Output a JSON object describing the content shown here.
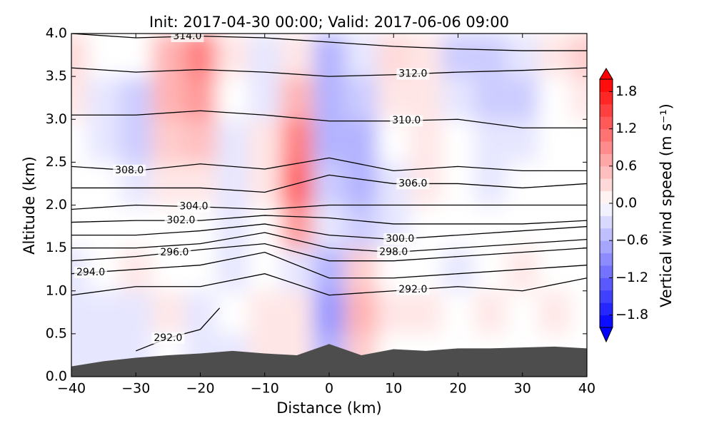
{
  "chart_data": {
    "type": "contour",
    "title": "Init: 2017-04-30 00:00; Valid: 2017-06-06 09:00",
    "xlabel": "Distance (km)",
    "ylabel": "Altitude (km)",
    "xlim": [
      -40,
      40
    ],
    "xticks": [
      {
        "value": -40,
        "label": "−40"
      },
      {
        "value": -30,
        "label": "−30"
      },
      {
        "value": -20,
        "label": "−20"
      },
      {
        "value": -10,
        "label": "−10"
      },
      0,
      10,
      20,
      30,
      40
    ],
    "ylim": [
      0,
      4
    ],
    "yticks": [
      {
        "value": 0,
        "label": "0.0"
      },
      0.5,
      {
        "value": 1,
        "label": "1.0"
      },
      1.5,
      {
        "value": 2,
        "label": "2.0"
      },
      2.5,
      {
        "value": 3,
        "label": "3.0"
      },
      3.5,
      {
        "value": 4,
        "label": "4.0"
      }
    ],
    "colorbar": {
      "label": "Vertical wind speed (m s⁻¹)",
      "clim": [
        -2,
        2
      ],
      "step": 0.2,
      "ticks": [
        {
          "value": -1.8,
          "label": "−1.8"
        },
        {
          "value": -1.2,
          "label": "−1.2"
        },
        {
          "value": -0.6,
          "label": "−0.6"
        },
        {
          "value": 0,
          "label": "0.0"
        },
        0.6,
        1.2,
        1.8
      ]
    },
    "field": {
      "x": [
        -40,
        -35,
        -30,
        -25,
        -20,
        -15,
        -10,
        -5,
        0,
        5,
        10,
        15,
        20,
        25,
        30,
        35,
        40
      ],
      "y": [
        0.25,
        0.75,
        1.25,
        1.75,
        2.25,
        2.75,
        3.25,
        3.75
      ],
      "values": [
        [
          -0.2,
          -0.2,
          -0.2,
          0,
          -0.2,
          -0.2,
          0.2,
          0.2,
          -0.6,
          0.4,
          0,
          0,
          0,
          0,
          0,
          0,
          0
        ],
        [
          -0.2,
          -0.2,
          -0.2,
          0.2,
          -0.2,
          0,
          0.2,
          0.2,
          -0.8,
          0.6,
          0.2,
          0.2,
          0,
          0.2,
          0,
          0.2,
          0
        ],
        [
          -0.2,
          0,
          0.2,
          0,
          0,
          -0.2,
          0,
          -0.2,
          -0.6,
          0.4,
          0,
          0,
          -0.2,
          0,
          0.2,
          0,
          0
        ],
        [
          0,
          0,
          0,
          0,
          0,
          -0.2,
          0,
          0.8,
          -0.2,
          -0.4,
          -0.2,
          0,
          0,
          0,
          0,
          0,
          0
        ],
        [
          0,
          0,
          -0.2,
          0.2,
          0.2,
          -0.2,
          0.2,
          1.2,
          -0.4,
          -0.6,
          -0.2,
          0.2,
          0,
          -0.2,
          0,
          0,
          0
        ],
        [
          0,
          -0.2,
          -0.4,
          0.4,
          0.5,
          -0.2,
          0.2,
          1.0,
          -0.6,
          -0.6,
          0,
          0.2,
          0,
          -0.2,
          -0.2,
          0,
          0
        ],
        [
          0.2,
          -0.2,
          -0.4,
          0.6,
          0.8,
          0,
          -0.2,
          0.6,
          -0.6,
          -0.4,
          0.2,
          0.2,
          -0.2,
          -0.4,
          -0.4,
          0,
          0.2
        ],
        [
          0.3,
          0,
          0,
          0.6,
          1.0,
          0.2,
          -0.2,
          0.2,
          -0.6,
          -0.2,
          0.3,
          0.2,
          -0.4,
          -0.4,
          -0.2,
          0.2,
          0.4
        ]
      ]
    },
    "contours": [
      {
        "level": 314,
        "label": "314.0",
        "label_x": -22,
        "x": [
          -40,
          -30,
          -20,
          -10,
          0,
          10,
          20,
          30,
          40
        ],
        "y": [
          4.0,
          3.95,
          3.97,
          3.95,
          3.9,
          3.85,
          3.82,
          3.8,
          3.8
        ]
      },
      {
        "level": 312,
        "label": "312.0",
        "label_x": 13,
        "x": [
          -40,
          -30,
          -20,
          -10,
          0,
          10,
          20,
          30,
          40
        ],
        "y": [
          3.6,
          3.55,
          3.58,
          3.55,
          3.5,
          3.52,
          3.55,
          3.57,
          3.6
        ]
      },
      {
        "level": 310,
        "label": "310.0",
        "label_x": 12,
        "x": [
          -40,
          -30,
          -20,
          -10,
          0,
          10,
          20,
          30,
          40
        ],
        "y": [
          3.05,
          3.05,
          3.1,
          3.05,
          2.98,
          2.98,
          3.0,
          2.9,
          2.9
        ]
      },
      {
        "level": 308,
        "label": "308.0",
        "label_x": -31,
        "x": [
          -40,
          -30,
          -20,
          -10,
          0,
          10,
          20,
          30,
          40
        ],
        "y": [
          2.45,
          2.4,
          2.48,
          2.42,
          2.55,
          2.4,
          2.45,
          2.4,
          2.4
        ]
      },
      {
        "level": 306,
        "label": "306.0",
        "label_x": 13,
        "x": [
          -40,
          -30,
          -20,
          -10,
          0,
          10,
          20,
          30,
          40
        ],
        "y": [
          2.2,
          2.2,
          2.2,
          2.15,
          2.35,
          2.25,
          2.25,
          2.2,
          2.25
        ]
      },
      {
        "level": 304,
        "label": "304.0",
        "label_x": -21,
        "x": [
          -40,
          -30,
          -20,
          -10,
          0,
          10,
          20,
          30,
          40
        ],
        "y": [
          1.95,
          2.0,
          1.98,
          1.95,
          2.0,
          2.0,
          2.0,
          2.0,
          2.0
        ]
      },
      {
        "level": 302,
        "label": "302.0",
        "label_x": -23,
        "x": [
          -40,
          -30,
          -20,
          -10,
          0,
          10,
          20,
          30,
          40
        ],
        "y": [
          1.8,
          1.82,
          1.82,
          1.88,
          1.85,
          1.78,
          1.78,
          1.78,
          1.82
        ]
      },
      {
        "level": 300,
        "label": "300.0",
        "label_x": 11,
        "x": [
          -40,
          -30,
          -20,
          -10,
          0,
          10,
          20,
          30,
          40
        ],
        "y": [
          1.65,
          1.65,
          1.7,
          1.78,
          1.65,
          1.6,
          1.65,
          1.7,
          1.75
        ]
      },
      {
        "level": 298,
        "label": "298.0",
        "label_x": 10,
        "x": [
          -40,
          -30,
          -20,
          -10,
          0,
          10,
          20,
          30,
          40
        ],
        "y": [
          1.5,
          1.5,
          1.55,
          1.68,
          1.5,
          1.45,
          1.5,
          1.55,
          1.6
        ]
      },
      {
        "level": 296,
        "label": "296.0",
        "label_x": -24,
        "x": [
          -40,
          -30,
          -20,
          -10,
          0,
          10,
          20,
          30,
          40
        ],
        "y": [
          1.35,
          1.4,
          1.48,
          1.55,
          1.35,
          1.35,
          1.4,
          1.45,
          1.5
        ]
      },
      {
        "level": 294,
        "label": "294.0",
        "label_x": -37,
        "x": [
          -40,
          -30,
          -20,
          -10,
          0,
          10,
          20,
          30,
          40
        ],
        "y": [
          1.2,
          1.25,
          1.3,
          1.45,
          1.15,
          1.15,
          1.2,
          1.25,
          1.3
        ]
      },
      {
        "level": 292,
        "label": "292.0",
        "label_x": 13,
        "x": [
          -40,
          -30,
          -20,
          -10,
          0,
          10,
          20,
          30,
          40
        ],
        "y": [
          0.95,
          1.05,
          1.05,
          1.2,
          0.95,
          1.0,
          1.05,
          1.0,
          1.15
        ]
      },
      {
        "level": 292,
        "label": "292.0",
        "label_x": -25,
        "x": [
          -30,
          -25,
          -20,
          -17
        ],
        "y": [
          0.3,
          0.45,
          0.55,
          0.8
        ]
      }
    ],
    "terrain": {
      "x": [
        -40,
        -35,
        -30,
        -25,
        -20,
        -15,
        -10,
        -5,
        0,
        5,
        10,
        15,
        20,
        25,
        30,
        35,
        40
      ],
      "y": [
        0.12,
        0.18,
        0.22,
        0.25,
        0.27,
        0.3,
        0.27,
        0.25,
        0.38,
        0.25,
        0.32,
        0.3,
        0.33,
        0.33,
        0.34,
        0.35,
        0.33
      ],
      "color": "#4d4d4d"
    }
  }
}
